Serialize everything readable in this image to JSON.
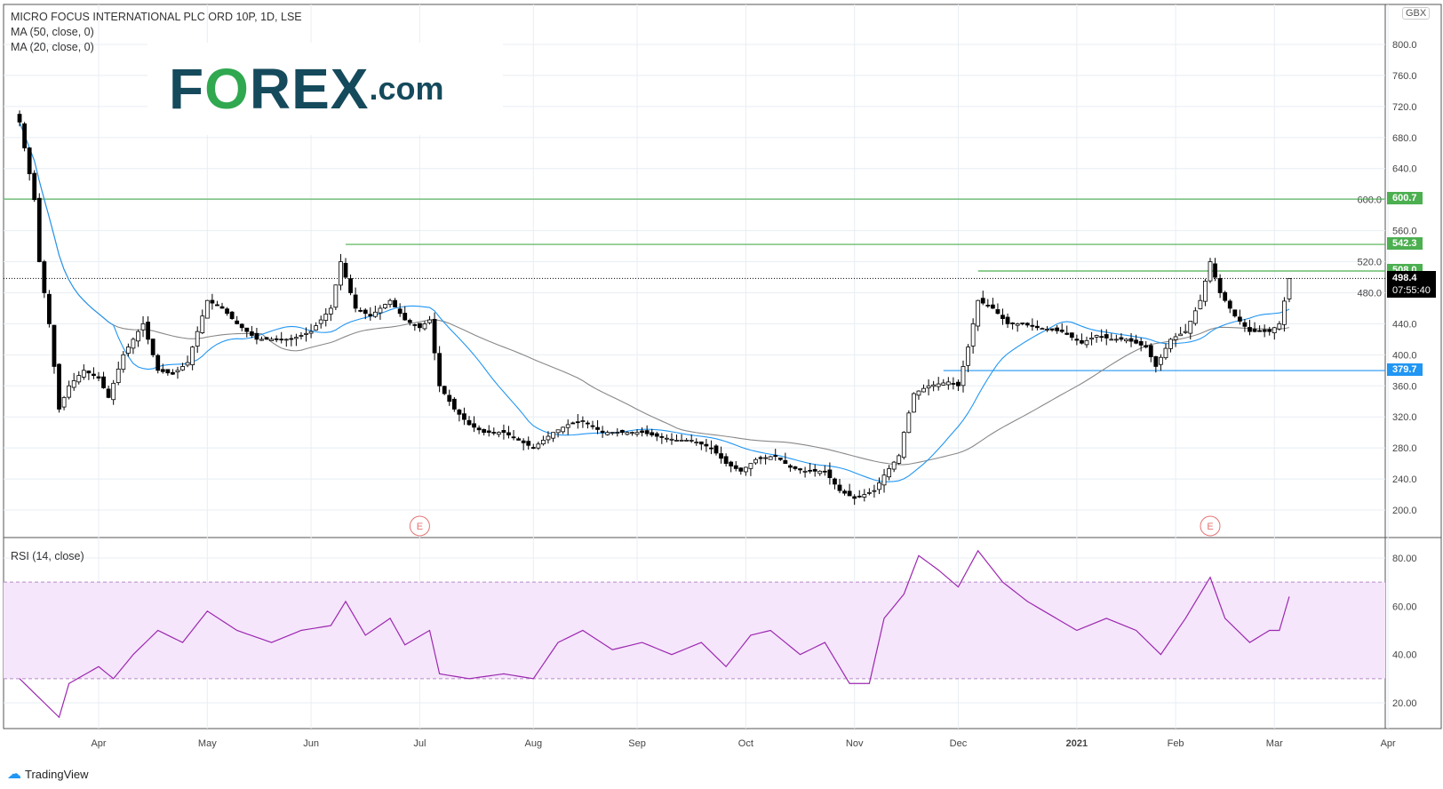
{
  "header": {
    "title": "MICRO FOCUS INTERNATIONAL PLC ORD 10P, 1D, LSE",
    "ma50": "MA (50, close, 0)",
    "ma20": "MA (20, close, 0)"
  },
  "logo": {
    "text": "FOREX.com"
  },
  "footer": {
    "brand": "TradingView"
  },
  "currency": "GBX",
  "chart_data": [
    {
      "type": "candlestick",
      "title": "MICRO FOCUS INTERNATIONAL PLC ORD 10P, 1D, LSE",
      "ylim": [
        180,
        820
      ],
      "yticks": [
        200,
        240,
        280,
        320,
        360,
        400,
        440,
        480,
        520,
        560,
        600,
        640,
        680,
        720,
        760,
        800
      ],
      "xticks": [
        "Apr",
        "May",
        "Jun",
        "Jul",
        "Aug",
        "Sep",
        "Oct",
        "Nov",
        "Dec",
        "2021",
        "Feb",
        "Mar",
        "Apr"
      ],
      "approx_closes": [
        [
          "2020-03-10",
          700
        ],
        [
          "2020-03-13",
          600
        ],
        [
          "2020-03-16",
          520
        ],
        [
          "2020-03-18",
          440
        ],
        [
          "2020-03-20",
          330
        ],
        [
          "2020-03-24",
          360
        ],
        [
          "2020-03-27",
          380
        ],
        [
          "2020-04-01",
          370
        ],
        [
          "2020-04-03",
          345
        ],
        [
          "2020-04-08",
          400
        ],
        [
          "2020-04-14",
          440
        ],
        [
          "2020-04-17",
          380
        ],
        [
          "2020-04-22",
          375
        ],
        [
          "2020-04-27",
          390
        ],
        [
          "2020-05-01",
          470
        ],
        [
          "2020-05-06",
          460
        ],
        [
          "2020-05-11",
          440
        ],
        [
          "2020-05-15",
          420
        ],
        [
          "2020-05-20",
          420
        ],
        [
          "2020-05-26",
          420
        ],
        [
          "2020-06-01",
          430
        ],
        [
          "2020-06-05",
          460
        ],
        [
          "2020-06-09",
          520
        ],
        [
          "2020-06-12",
          460
        ],
        [
          "2020-06-17",
          450
        ],
        [
          "2020-06-23",
          470
        ],
        [
          "2020-06-26",
          445
        ],
        [
          "2020-07-01",
          435
        ],
        [
          "2020-07-03",
          445
        ],
        [
          "2020-07-07",
          360
        ],
        [
          "2020-07-10",
          330
        ],
        [
          "2020-07-15",
          310
        ],
        [
          "2020-07-20",
          300
        ],
        [
          "2020-07-24",
          300
        ],
        [
          "2020-07-29",
          290
        ],
        [
          "2020-08-03",
          280
        ],
        [
          "2020-08-07",
          300
        ],
        [
          "2020-08-12",
          310
        ],
        [
          "2020-08-17",
          315
        ],
        [
          "2020-08-21",
          300
        ],
        [
          "2020-08-27",
          300
        ],
        [
          "2020-09-02",
          300
        ],
        [
          "2020-09-07",
          295
        ],
        [
          "2020-09-11",
          290
        ],
        [
          "2020-09-16",
          290
        ],
        [
          "2020-09-22",
          280
        ],
        [
          "2020-09-25",
          260
        ],
        [
          "2020-09-30",
          250
        ],
        [
          "2020-10-05",
          265
        ],
        [
          "2020-10-09",
          270
        ],
        [
          "2020-10-14",
          255
        ],
        [
          "2020-10-19",
          250
        ],
        [
          "2020-10-23",
          250
        ],
        [
          "2020-10-28",
          225
        ],
        [
          "2020-11-02",
          215
        ],
        [
          "2020-11-06",
          225
        ],
        [
          "2020-11-10",
          245
        ],
        [
          "2020-11-13",
          270
        ],
        [
          "2020-11-16",
          300
        ],
        [
          "2020-11-18",
          350
        ],
        [
          "2020-11-23",
          360
        ],
        [
          "2020-11-27",
          365
        ],
        [
          "2020-12-01",
          360
        ],
        [
          "2020-12-03",
          410
        ],
        [
          "2020-12-07",
          470
        ],
        [
          "2020-12-10",
          460
        ],
        [
          "2020-12-15",
          440
        ],
        [
          "2020-12-18",
          440
        ],
        [
          "2020-12-23",
          435
        ],
        [
          "2020-12-30",
          430
        ],
        [
          "2021-01-05",
          415
        ],
        [
          "2021-01-08",
          425
        ],
        [
          "2021-01-13",
          420
        ],
        [
          "2021-01-18",
          420
        ],
        [
          "2021-01-22",
          410
        ],
        [
          "2021-01-26",
          385
        ],
        [
          "2021-01-29",
          420
        ],
        [
          "2021-02-03",
          430
        ],
        [
          "2021-02-08",
          470
        ],
        [
          "2021-02-10",
          520
        ],
        [
          "2021-02-12",
          480
        ],
        [
          "2021-02-17",
          450
        ],
        [
          "2021-02-22",
          430
        ],
        [
          "2021-02-26",
          430
        ],
        [
          "2021-03-01",
          435
        ],
        [
          "2021-03-02",
          440
        ],
        [
          "2021-03-04",
          498.4
        ]
      ],
      "moving_averages": [
        {
          "name": "MA (50, close, 0)",
          "color": "#888888"
        },
        {
          "name": "MA (20, close, 0)",
          "color": "#2196f3"
        }
      ],
      "levels": [
        {
          "value": 600.7,
          "label": "600.7",
          "color": "#4caf50",
          "from": "2020-03-10"
        },
        {
          "value": 542.3,
          "label": "542.3",
          "color": "#4caf50",
          "from": "2020-06-10"
        },
        {
          "value": 508.0,
          "label": "508.0",
          "color": "#4caf50",
          "from": "2020-12-07"
        },
        {
          "value": 379.7,
          "label": "379.7",
          "color": "#2196f3",
          "from": "2020-11-26"
        }
      ],
      "last_price": {
        "value": 498.4,
        "label": "498.4",
        "countdown": "07:55:40"
      },
      "earnings_markers": [
        {
          "date": "2020-07-01",
          "label": "E"
        },
        {
          "date": "2021-02-10",
          "label": "E"
        }
      ]
    },
    {
      "type": "line",
      "title": "RSI (14, close)",
      "ylim": [
        10,
        90
      ],
      "yticks": [
        "20.00",
        "40.00",
        "60.00",
        "80.00"
      ],
      "band": [
        30,
        70
      ],
      "color": "#9c27b0",
      "approx_values": [
        [
          "2020-03-10",
          30
        ],
        [
          "2020-03-16",
          22
        ],
        [
          "2020-03-20",
          14
        ],
        [
          "2020-03-24",
          28
        ],
        [
          "2020-04-01",
          35
        ],
        [
          "2020-04-06",
          30
        ],
        [
          "2020-04-10",
          40
        ],
        [
          "2020-04-17",
          50
        ],
        [
          "2020-04-24",
          45
        ],
        [
          "2020-05-01",
          58
        ],
        [
          "2020-05-11",
          50
        ],
        [
          "2020-05-20",
          45
        ],
        [
          "2020-05-28",
          50
        ],
        [
          "2020-06-05",
          52
        ],
        [
          "2020-06-10",
          62
        ],
        [
          "2020-06-16",
          48
        ],
        [
          "2020-06-23",
          55
        ],
        [
          "2020-06-26",
          44
        ],
        [
          "2020-07-03",
          50
        ],
        [
          "2020-07-07",
          32
        ],
        [
          "2020-07-15",
          30
        ],
        [
          "2020-07-24",
          32
        ],
        [
          "2020-08-03",
          30
        ],
        [
          "2020-08-10",
          45
        ],
        [
          "2020-08-17",
          50
        ],
        [
          "2020-08-25",
          42
        ],
        [
          "2020-09-02",
          45
        ],
        [
          "2020-09-10",
          40
        ],
        [
          "2020-09-18",
          45
        ],
        [
          "2020-09-25",
          35
        ],
        [
          "2020-10-02",
          48
        ],
        [
          "2020-10-08",
          50
        ],
        [
          "2020-10-16",
          40
        ],
        [
          "2020-10-23",
          45
        ],
        [
          "2020-10-30",
          28
        ],
        [
          "2020-11-05",
          28
        ],
        [
          "2020-11-10",
          55
        ],
        [
          "2020-11-16",
          65
        ],
        [
          "2020-11-19",
          81
        ],
        [
          "2020-11-25",
          75
        ],
        [
          "2020-12-01",
          68
        ],
        [
          "2020-12-07",
          83
        ],
        [
          "2020-12-14",
          70
        ],
        [
          "2020-12-21",
          62
        ],
        [
          "2021-01-04",
          50
        ],
        [
          "2021-01-12",
          55
        ],
        [
          "2021-01-20",
          50
        ],
        [
          "2021-01-27",
          40
        ],
        [
          "2021-02-03",
          55
        ],
        [
          "2021-02-10",
          72
        ],
        [
          "2021-02-15",
          55
        ],
        [
          "2021-02-22",
          45
        ],
        [
          "2021-02-26",
          50
        ],
        [
          "2021-03-02",
          50
        ],
        [
          "2021-03-04",
          64
        ]
      ]
    }
  ]
}
